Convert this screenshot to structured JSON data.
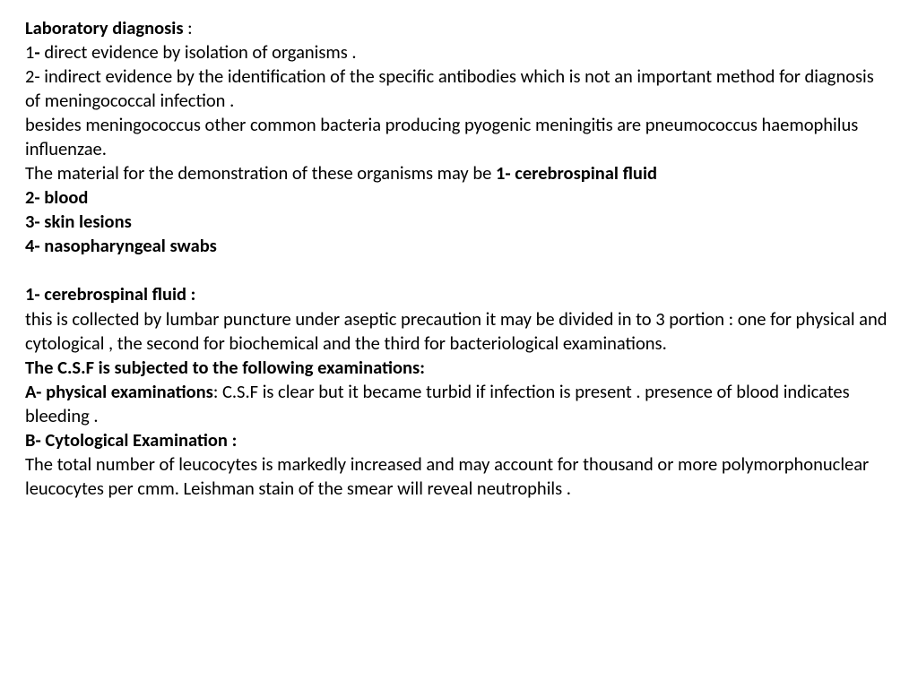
{
  "heading": "Laboratory diagnosis",
  "headingSuffix": " :",
  "point1_prefix": "1",
  "point1_dash": "- ",
  "point1_text": "direct evidence by isolation of organisms .",
  "point2_full": " 2- indirect evidence by the identification of the specific antibodies which is not an important method for diagnosis of meningococcal infection .",
  "besides": "besides meningococcus other common bacteria producing pyogenic meningitis are pneumococcus haemophilus influenzae.",
  "material_intro": "The material for the demonstration of these organisms may be ",
  "material1": "1- cerebrospinal fluid",
  "material2": "2- blood",
  "material3": "3- skin lesions",
  "material4": "4- nasopharyngeal swabs",
  "csf_heading": "1- cerebrospinal fluid :",
  "csf_text": "this is collected by lumbar puncture under aseptic precaution it may be divided in   to 3 portion : one for   physical   and cytological  , the second for biochemical    and  the third  for bacteriological examinations.",
  "csf_subject": "The C.S.F is subjected to the following examinations:",
  "a_heading": "A- physical examinations",
  "a_text1": ": C.S.F is clear but it became turbid if infection is      present . presence of blood indicates bleeding .",
  "b_heading": "B- Cytological Examination :",
  "b_text": "The total number of leucocytes is markedly increased and may account for thousand or more polymorphonuclear leucocytes per cmm. Leishman stain of the smear will reveal neutrophils ."
}
